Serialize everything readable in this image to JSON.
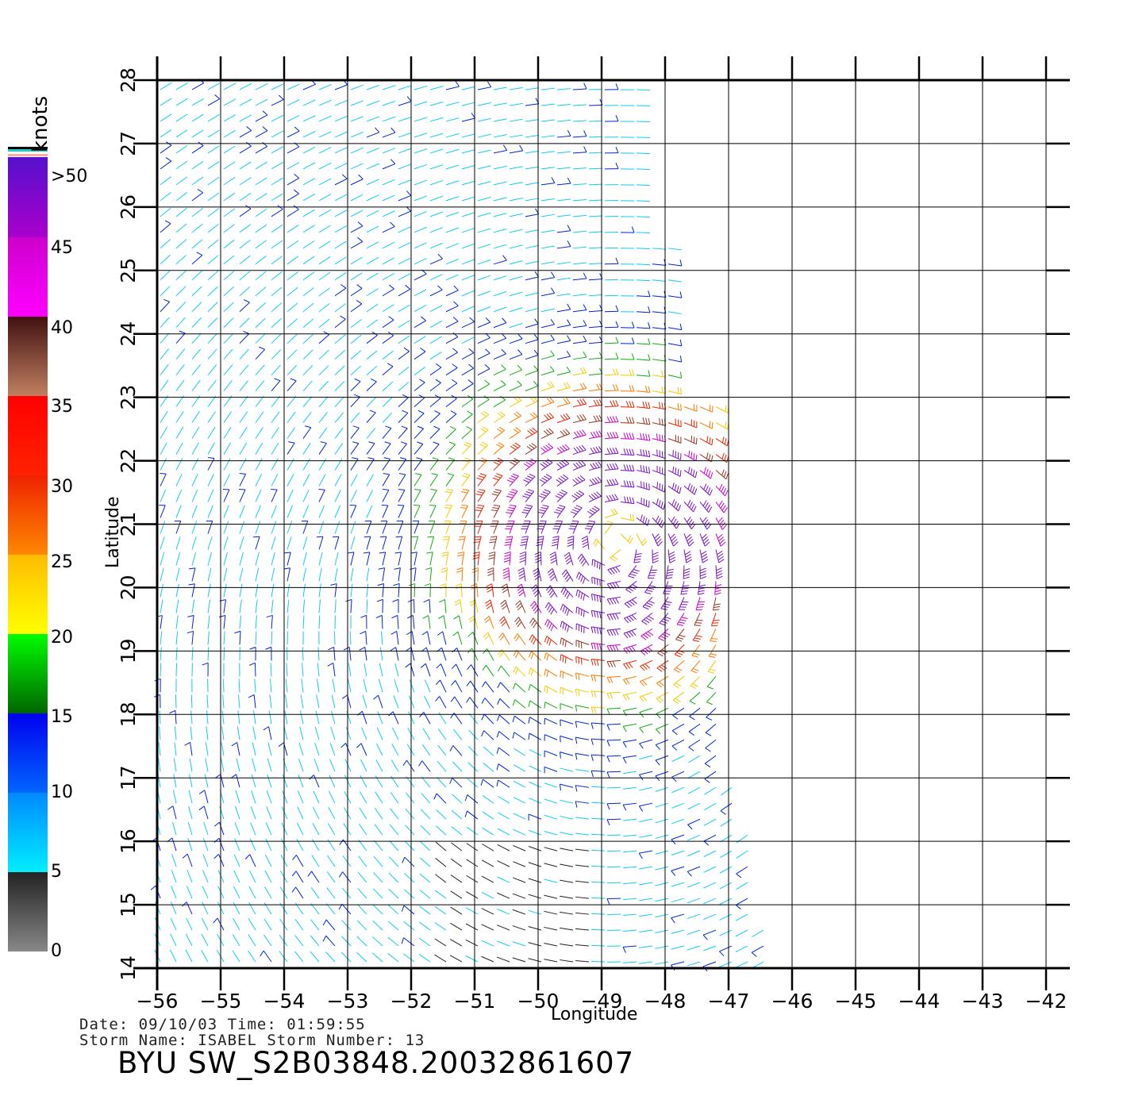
{
  "map": {
    "lon_ticks": [
      "−56",
      "−55",
      "−54",
      "−53",
      "−52",
      "−51",
      "−50",
      "−49",
      "−48",
      "−47",
      "−46",
      "−45",
      "−44",
      "−43",
      "−42"
    ],
    "lat_ticks": [
      "14",
      "15",
      "16",
      "17",
      "18",
      "19",
      "20",
      "21",
      "22",
      "23",
      "24",
      "25",
      "26",
      "27",
      "28"
    ],
    "lon_range": [
      -56,
      -42
    ],
    "lat_range": [
      14,
      28
    ],
    "x_label": "Longitude",
    "y_label": "Latitude",
    "storm_center": {
      "lon": -48.8,
      "lat": 20.8
    },
    "swath_edge": "east side cuts off near −48 to −46.5 longitude",
    "grid": true
  },
  "colorbar": {
    "unit": "knots",
    "labels": [
      "0",
      "5",
      "10",
      "15",
      "20",
      "25",
      "30",
      "35",
      "40",
      "45",
      ">50"
    ],
    "bands": [
      {
        "from": 0,
        "to": 5,
        "colors": [
          "#888888",
          "#222222"
        ]
      },
      {
        "from": 5,
        "to": 10,
        "colors": [
          "#00eeff",
          "#0088ff"
        ]
      },
      {
        "from": 10,
        "to": 15,
        "colors": [
          "#0066ff",
          "#0000ee"
        ]
      },
      {
        "from": 15,
        "to": 20,
        "colors": [
          "#006600",
          "#00ff00"
        ]
      },
      {
        "from": 20,
        "to": 25,
        "colors": [
          "#ffff00",
          "#ffbb00"
        ]
      },
      {
        "from": 25,
        "to": 30,
        "colors": [
          "#ff8800",
          "#ee2200"
        ]
      },
      {
        "from": 30,
        "to": 35,
        "colors": [
          "#ff2200",
          "#ff0000"
        ]
      },
      {
        "from": 35,
        "to": 40,
        "colors": [
          "#c08060",
          "#401010"
        ]
      },
      {
        "from": 40,
        "to": 45,
        "colors": [
          "#ff00ff",
          "#cc00cc"
        ]
      },
      {
        "from": 45,
        "to": 50,
        "colors": [
          "#aa00cc",
          "#5511cc"
        ]
      }
    ]
  },
  "info": {
    "line1": "Date: 09/10/03   Time: 01:59:55",
    "line2": "Storm Name: ISABEL   Storm Number: 13",
    "title": "BYU SW_S2B03848.20032861607"
  }
}
